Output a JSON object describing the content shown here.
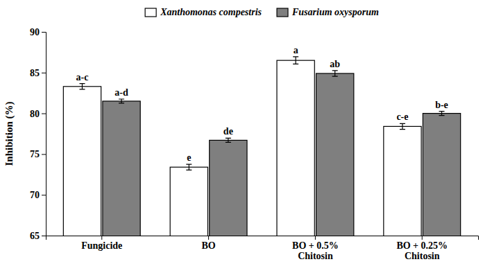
{
  "chart_data": {
    "type": "bar",
    "categories": [
      "Fungicide",
      "BO",
      "BO + 0.5%\nChitosin",
      "BO + 0.25%\nChitosin"
    ],
    "series": [
      {
        "name": "Xanthomonas compestris",
        "color": "#FFFFFF",
        "values": [
          83.3,
          73.4,
          86.5,
          78.4
        ],
        "errors": [
          0.35,
          0.35,
          0.45,
          0.35
        ],
        "annotations": [
          "a-c",
          "e",
          "a",
          "c-e"
        ]
      },
      {
        "name": "Fusarium oxysporum",
        "color": "#7F7F7F",
        "values": [
          81.5,
          76.7,
          84.9,
          80.0
        ],
        "errors": [
          0.25,
          0.25,
          0.35,
          0.25
        ],
        "annotations": [
          "a-d",
          "de",
          "ab",
          "b-e"
        ]
      }
    ],
    "ylabel": "Inhibition (%)",
    "ylim": [
      65,
      90
    ],
    "yticks": [
      65,
      70,
      75,
      80,
      85,
      90
    ],
    "legend": "top"
  }
}
